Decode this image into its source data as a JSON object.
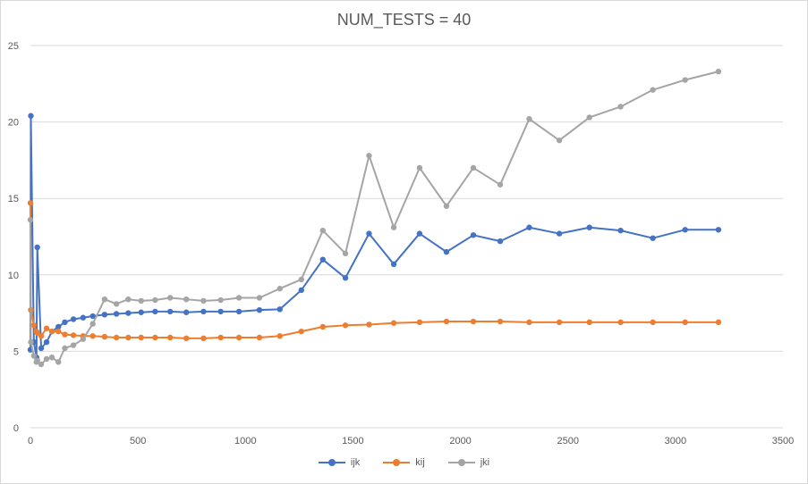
{
  "chart_data": {
    "type": "line",
    "title": "NUM_TESTS = 40",
    "xlabel": "",
    "ylabel": "",
    "xlim": [
      0,
      3500
    ],
    "ylim": [
      0,
      25
    ],
    "x_ticks": [
      0,
      500,
      1000,
      1500,
      2000,
      2500,
      3000,
      3500
    ],
    "y_ticks": [
      0,
      5,
      10,
      15,
      20,
      25
    ],
    "grid": "horizontal",
    "legend_position": "bottom",
    "series": [
      {
        "name": "ijk",
        "color": "#4472c4",
        "points": [
          [
            0,
            5.1
          ],
          [
            2,
            20.4
          ],
          [
            16,
            5.6
          ],
          [
            28,
            4.6
          ],
          [
            32,
            11.8
          ],
          [
            50,
            5.2
          ],
          [
            75,
            5.6
          ],
          [
            100,
            6.3
          ],
          [
            130,
            6.6
          ],
          [
            160,
            6.9
          ],
          [
            200,
            7.1
          ],
          [
            245,
            7.2
          ],
          [
            290,
            7.3
          ],
          [
            345,
            7.4
          ],
          [
            400,
            7.45
          ],
          [
            455,
            7.5
          ],
          [
            515,
            7.55
          ],
          [
            580,
            7.6
          ],
          [
            650,
            7.6
          ],
          [
            725,
            7.55
          ],
          [
            805,
            7.6
          ],
          [
            885,
            7.6
          ],
          [
            970,
            7.6
          ],
          [
            1065,
            7.7
          ],
          [
            1160,
            7.75
          ],
          [
            1260,
            9.0
          ],
          [
            1360,
            11.0
          ],
          [
            1465,
            9.8
          ],
          [
            1575,
            12.7
          ],
          [
            1690,
            10.7
          ],
          [
            1810,
            12.7
          ],
          [
            1935,
            11.5
          ],
          [
            2060,
            12.6
          ],
          [
            2185,
            12.2
          ],
          [
            2320,
            13.1
          ],
          [
            2460,
            12.7
          ],
          [
            2600,
            13.1
          ],
          [
            2745,
            12.9
          ],
          [
            2895,
            12.4
          ],
          [
            3045,
            12.95
          ],
          [
            3200,
            12.95
          ]
        ]
      },
      {
        "name": "kij",
        "color": "#ed7d31",
        "points": [
          [
            0,
            14.7
          ],
          [
            2,
            7.7
          ],
          [
            16,
            6.7
          ],
          [
            28,
            6.3
          ],
          [
            32,
            6.2
          ],
          [
            50,
            6.0
          ],
          [
            75,
            6.5
          ],
          [
            100,
            6.3
          ],
          [
            130,
            6.3
          ],
          [
            160,
            6.1
          ],
          [
            200,
            6.05
          ],
          [
            245,
            6.0
          ],
          [
            290,
            6.0
          ],
          [
            345,
            5.95
          ],
          [
            400,
            5.9
          ],
          [
            455,
            5.9
          ],
          [
            515,
            5.9
          ],
          [
            580,
            5.9
          ],
          [
            650,
            5.9
          ],
          [
            725,
            5.85
          ],
          [
            805,
            5.85
          ],
          [
            885,
            5.9
          ],
          [
            970,
            5.9
          ],
          [
            1065,
            5.9
          ],
          [
            1160,
            6.0
          ],
          [
            1260,
            6.3
          ],
          [
            1360,
            6.6
          ],
          [
            1465,
            6.7
          ],
          [
            1575,
            6.75
          ],
          [
            1690,
            6.85
          ],
          [
            1810,
            6.9
          ],
          [
            1935,
            6.95
          ],
          [
            2060,
            6.95
          ],
          [
            2185,
            6.95
          ],
          [
            2320,
            6.9
          ],
          [
            2460,
            6.9
          ],
          [
            2600,
            6.9
          ],
          [
            2745,
            6.9
          ],
          [
            2895,
            6.9
          ],
          [
            3045,
            6.9
          ],
          [
            3200,
            6.9
          ]
        ]
      },
      {
        "name": "jki",
        "color": "#a5a5a5",
        "points": [
          [
            0,
            13.6
          ],
          [
            2,
            5.6
          ],
          [
            16,
            4.7
          ],
          [
            28,
            4.3
          ],
          [
            32,
            4.4
          ],
          [
            50,
            4.15
          ],
          [
            75,
            4.5
          ],
          [
            100,
            4.6
          ],
          [
            130,
            4.3
          ],
          [
            160,
            5.2
          ],
          [
            200,
            5.4
          ],
          [
            245,
            5.8
          ],
          [
            290,
            6.8
          ],
          [
            345,
            8.4
          ],
          [
            400,
            8.1
          ],
          [
            455,
            8.4
          ],
          [
            515,
            8.3
          ],
          [
            580,
            8.35
          ],
          [
            650,
            8.5
          ],
          [
            725,
            8.4
          ],
          [
            805,
            8.3
          ],
          [
            885,
            8.35
          ],
          [
            970,
            8.5
          ],
          [
            1065,
            8.5
          ],
          [
            1160,
            9.1
          ],
          [
            1260,
            9.7
          ],
          [
            1360,
            12.9
          ],
          [
            1465,
            11.4
          ],
          [
            1575,
            17.8
          ],
          [
            1690,
            13.1
          ],
          [
            1810,
            17.0
          ],
          [
            1935,
            14.5
          ],
          [
            2060,
            17.0
          ],
          [
            2185,
            15.9
          ],
          [
            2320,
            20.2
          ],
          [
            2460,
            18.8
          ],
          [
            2600,
            20.3
          ],
          [
            2745,
            21.0
          ],
          [
            2895,
            22.1
          ],
          [
            3045,
            22.75
          ],
          [
            3200,
            23.3
          ]
        ]
      }
    ]
  }
}
